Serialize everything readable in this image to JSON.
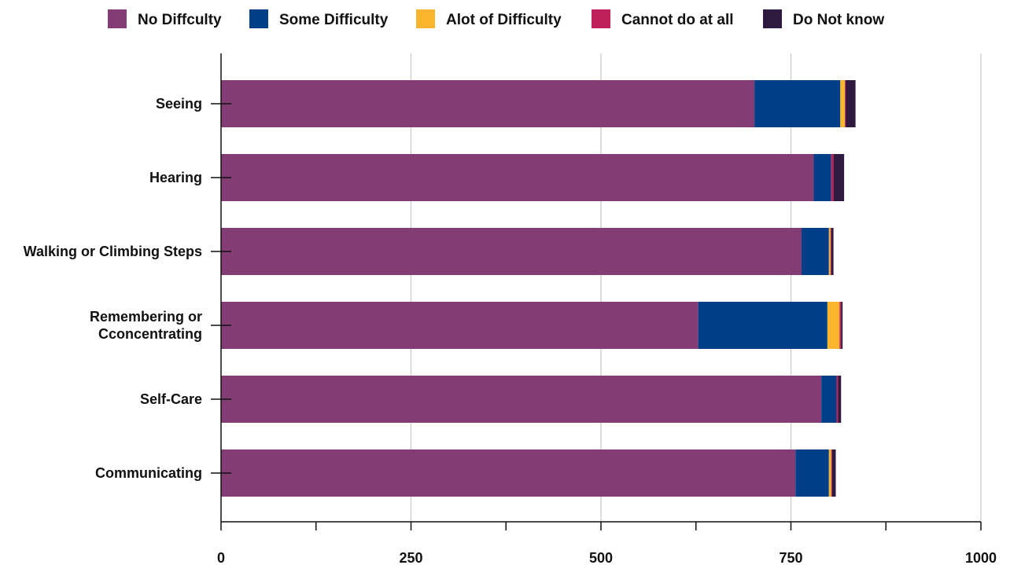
{
  "chart_data": {
    "type": "bar",
    "orientation": "horizontal",
    "stacked": true,
    "title": "",
    "xlabel": "",
    "ylabel": "",
    "categories": [
      "Seeing",
      "Hearing",
      "Walking or Climbing Steps",
      "Remembering or Cconcentrating",
      "Self-Care",
      "Communicating"
    ],
    "series": [
      {
        "name": "No Diffculty",
        "color": "#843c74",
        "values": [
          702,
          780,
          764,
          628,
          790,
          756
        ]
      },
      {
        "name": "Some Difficulty",
        "color": "#003f87",
        "values": [
          113,
          23,
          36,
          170,
          20,
          44
        ]
      },
      {
        "name": "Alot of Difficulty",
        "color": "#f9b52e",
        "values": [
          6,
          0,
          2,
          16,
          0,
          3
        ]
      },
      {
        "name": "Cannot do at all",
        "color": "#c0205a",
        "values": [
          1,
          3,
          1,
          2,
          2,
          1
        ]
      },
      {
        "name": "Do Not know",
        "color": "#2e1a3f",
        "values": [
          13,
          14,
          3,
          2,
          4,
          5
        ]
      }
    ],
    "xlim": [
      0,
      1000
    ],
    "xticks": [
      0,
      250,
      500,
      750,
      1000
    ],
    "xtick_labels": [
      "0",
      "250",
      "500",
      "750",
      "1000"
    ],
    "grid": true,
    "legend_position": "top"
  }
}
